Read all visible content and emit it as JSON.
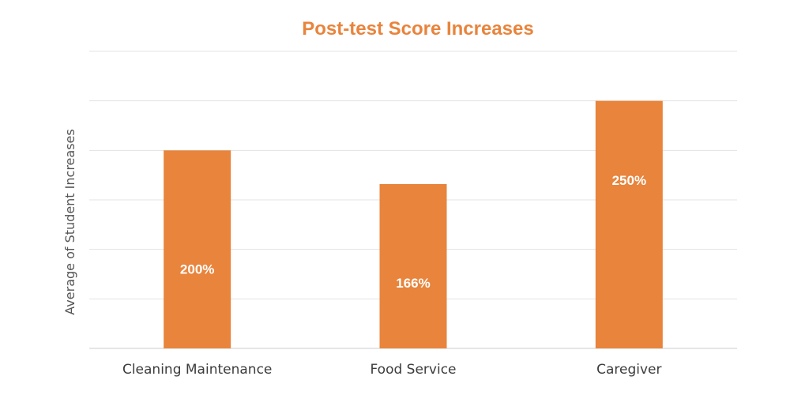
{
  "chart_data": {
    "type": "bar",
    "title": "Post-test Score Increases",
    "xlabel": "",
    "ylabel": "Average of Student Increases",
    "categories": [
      "Cleaning Maintenance",
      "Food Service",
      "Caregiver"
    ],
    "values": [
      200,
      166,
      250
    ],
    "data_labels": [
      "200%",
      "166%",
      "250%"
    ],
    "ylim": [
      0,
      300
    ],
    "grid": true,
    "legend": "none",
    "bar_color": "#e8843c",
    "title_color": "#e8843c"
  }
}
